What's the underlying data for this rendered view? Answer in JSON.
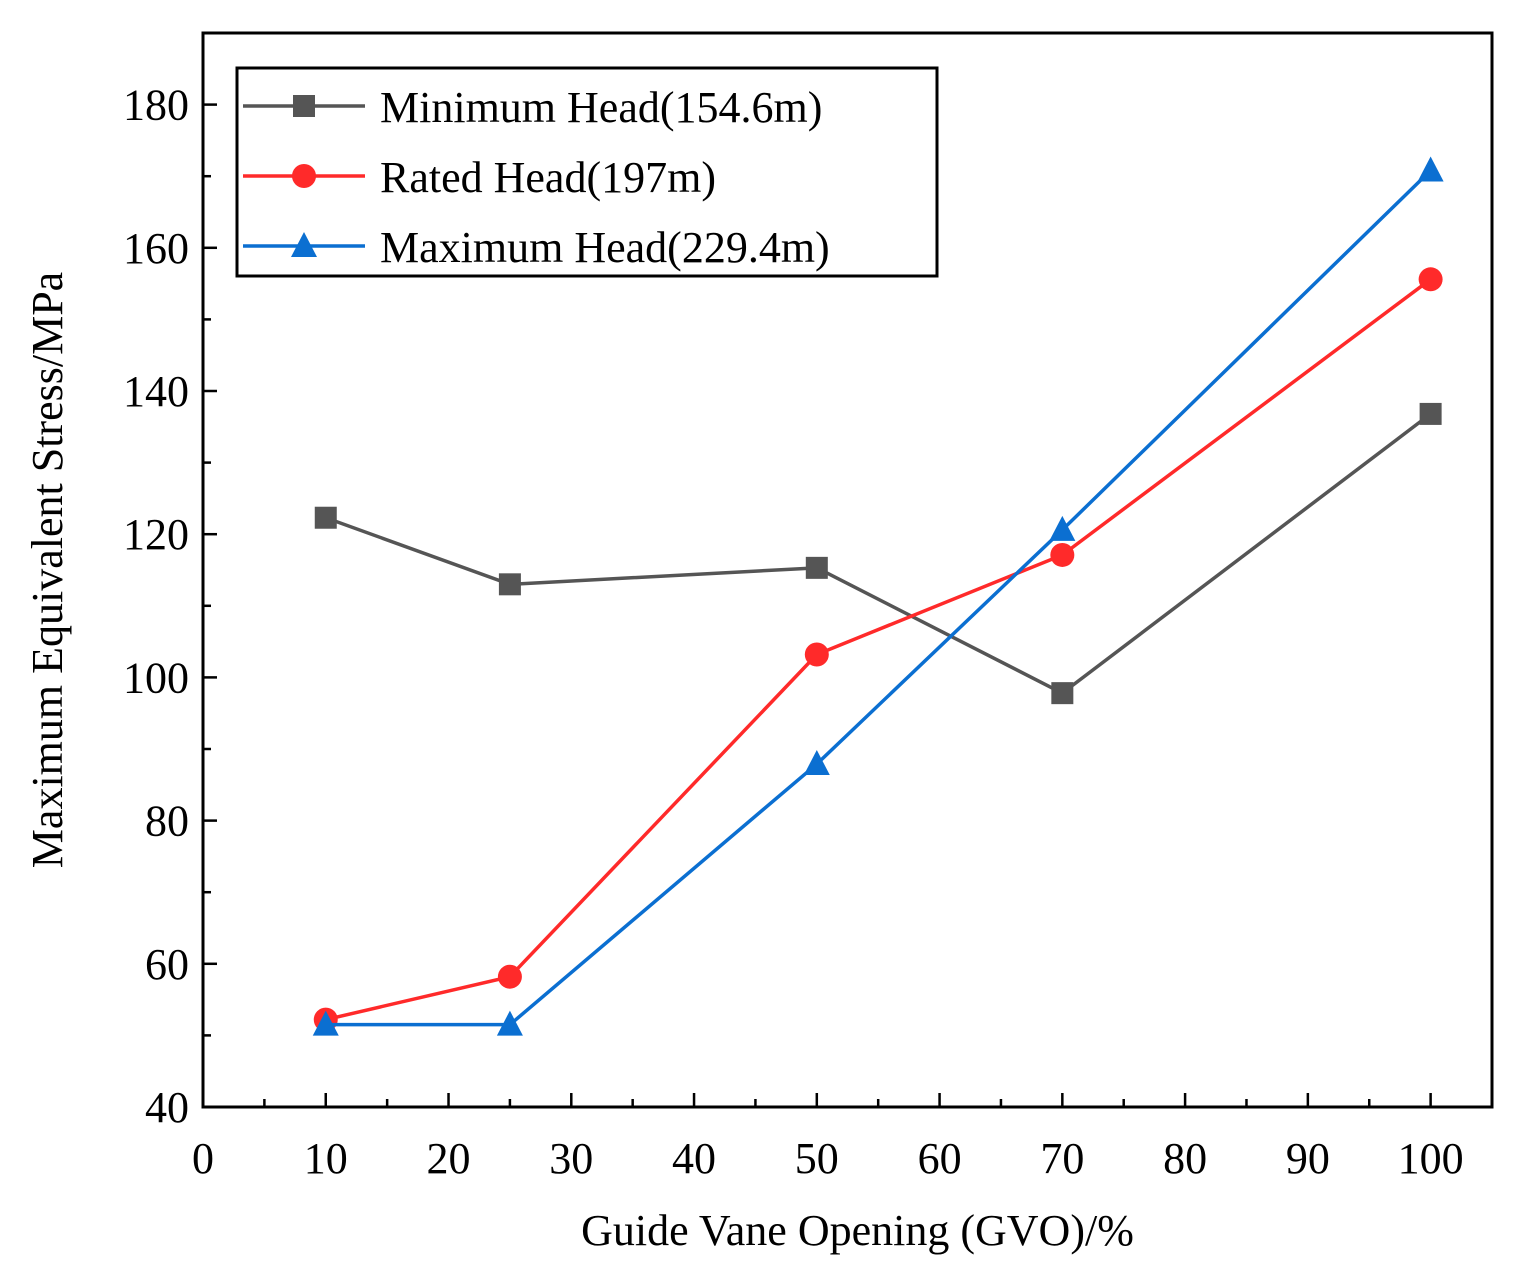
{
  "chart_data": {
    "type": "line",
    "title": "",
    "xlabel": "Guide Vane Opening (GVO)/%",
    "ylabel": "Maximum Equivalent Stress/MPa",
    "xlim": [
      0,
      105
    ],
    "ylim": [
      40,
      190
    ],
    "xticks": [
      0,
      10,
      20,
      30,
      40,
      50,
      60,
      70,
      80,
      90,
      100
    ],
    "yticks": [
      40,
      60,
      80,
      100,
      120,
      140,
      160,
      180
    ],
    "grid": false,
    "legend_position": "top-left",
    "x": [
      10,
      25,
      50,
      70,
      100
    ],
    "series": [
      {
        "name": "Minimum Head(154.6m)",
        "color": "#555555",
        "marker": "square",
        "values": [
          122.3,
          113.0,
          115.3,
          97.8,
          136.8
        ]
      },
      {
        "name": "Rated Head(197m)",
        "color": "#ff2a2a",
        "marker": "circle",
        "values": [
          52.2,
          58.2,
          103.2,
          117.1,
          155.6
        ]
      },
      {
        "name": "Maximum Head(229.4m)",
        "color": "#0b6fd1",
        "marker": "triangle",
        "values": [
          51.5,
          51.5,
          87.9,
          120.6,
          170.8
        ]
      }
    ]
  }
}
